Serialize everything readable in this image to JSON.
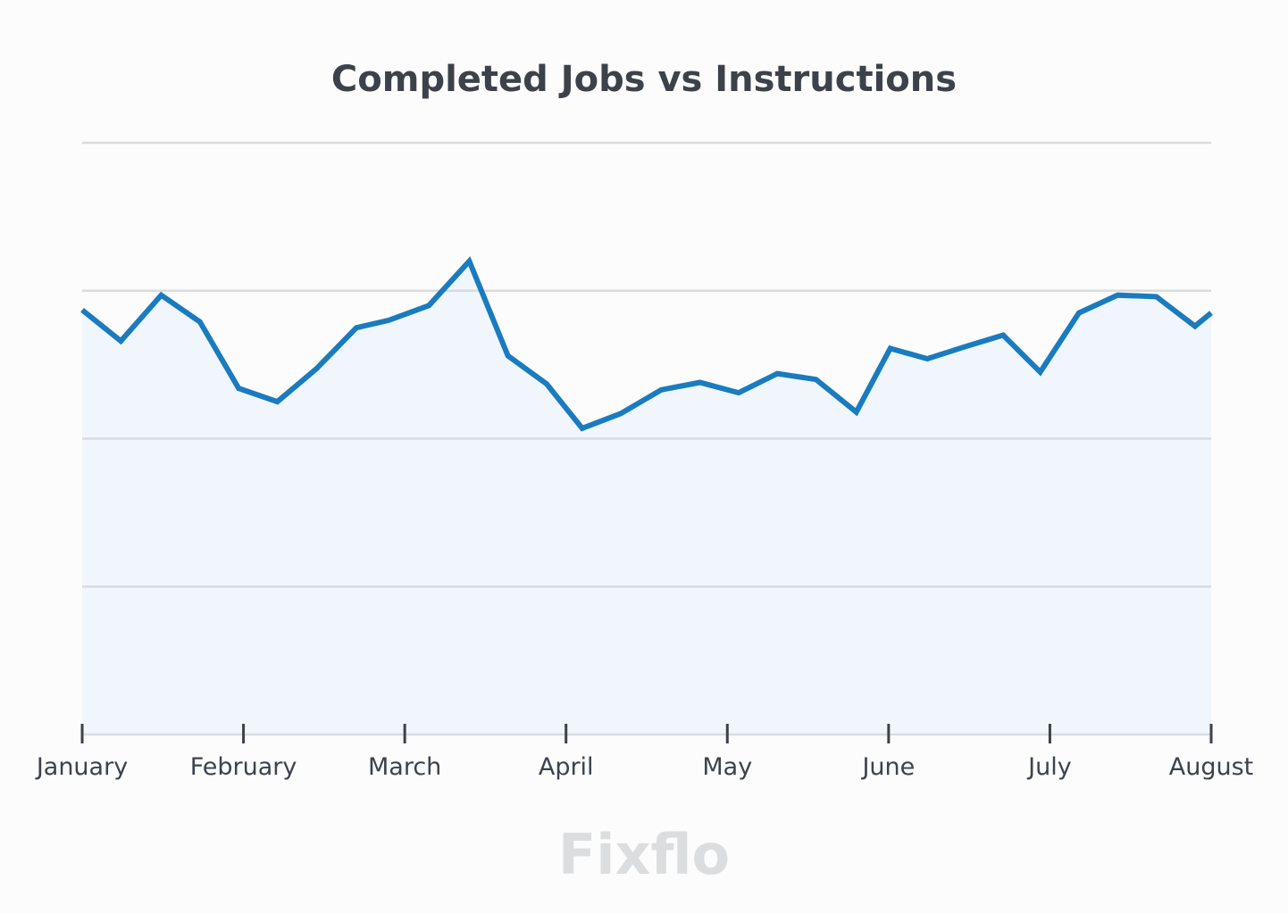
{
  "chart_data": {
    "type": "area",
    "title": "Completed Jobs vs Instructions",
    "xlabel": "",
    "ylabel": "",
    "x_tick_labels": [
      "January",
      "February",
      "March",
      "April",
      "May",
      "June",
      "July",
      "August"
    ],
    "x_range": [
      0,
      7
    ],
    "ylim": [
      0,
      4
    ],
    "y_gridlines": [
      0,
      1,
      2,
      3,
      4
    ],
    "y_tick_labels_visible": false,
    "grid": true,
    "legend": "none",
    "series": [
      {
        "x": [
          0,
          0.24,
          0.49,
          0.73,
          0.97,
          1.21,
          1.45,
          1.7,
          1.9,
          2.15,
          2.4,
          2.64,
          2.88,
          3.1,
          3.34,
          3.59,
          3.83,
          4.07,
          4.31,
          4.55,
          4.8,
          5.01,
          5.24,
          5.47,
          5.71,
          5.94,
          6.18,
          6.42,
          6.66,
          6.9,
          7.0
        ],
        "values": [
          2.87,
          2.66,
          2.97,
          2.79,
          2.34,
          2.25,
          2.47,
          2.75,
          2.8,
          2.9,
          3.2,
          2.56,
          2.37,
          2.07,
          2.17,
          2.33,
          2.38,
          2.31,
          2.44,
          2.4,
          2.18,
          2.61,
          2.54,
          2.62,
          2.7,
          2.45,
          2.85,
          2.97,
          2.96,
          2.76,
          2.85
        ]
      }
    ]
  },
  "watermark": {
    "text": "Fixflo"
  },
  "colors": {
    "line": "#1a7bbf",
    "area_fill": "#f0f6fc",
    "gridline": "#d9dbde",
    "axis": "#3d424a",
    "title": "#3d424a",
    "watermark": "#dbdddf",
    "background": "#fcfcfc"
  }
}
